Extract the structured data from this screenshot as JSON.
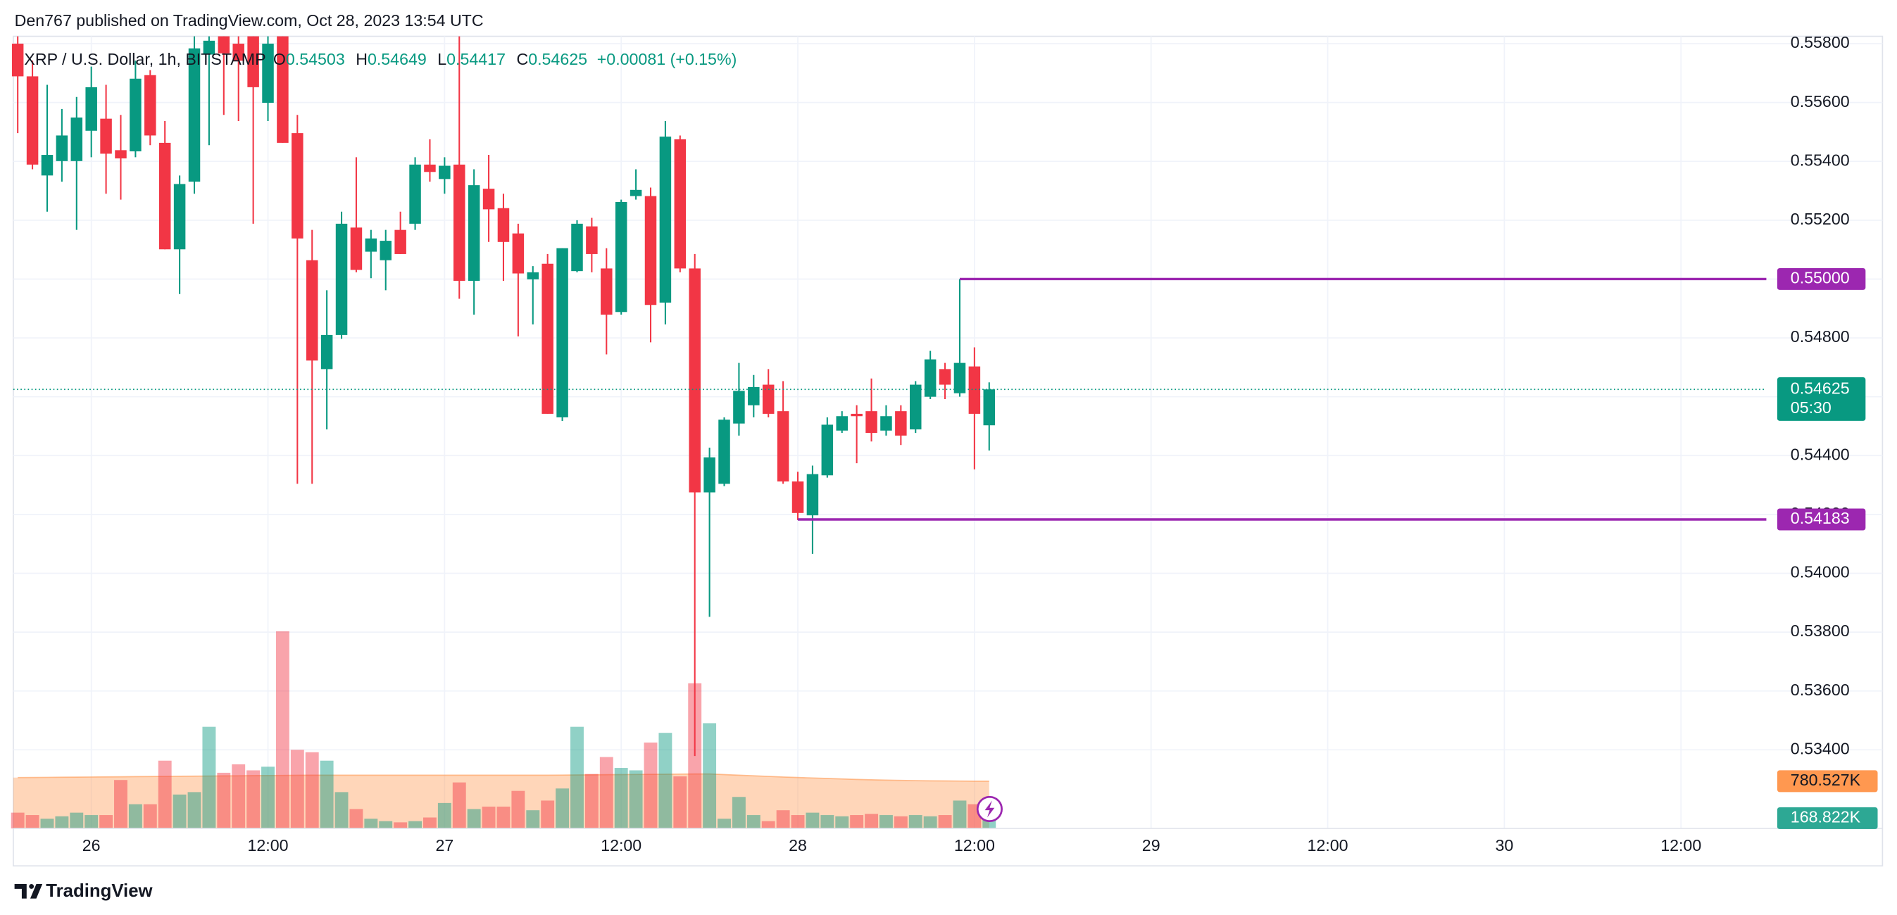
{
  "header": "Den767 published on TradingView.com, Oct 28, 2023 13:54 UTC",
  "footer": "TradingView",
  "chart_data": {
    "type": "candlestick",
    "title": "XRP / U.S. Dollar, 1h, BITSTAMP",
    "ohlc_labels": [
      "O",
      "H",
      "L",
      "C"
    ],
    "change": "+0.00081 (+0.15%)",
    "open": [
      0.558,
      0.55689,
      0.55352,
      0.55401,
      0.55401,
      0.55504,
      0.55545,
      0.55438,
      0.55434,
      0.55693,
      0.55463,
      0.55101,
      0.55331,
      0.55763,
      0.55825,
      0.558,
      0.55825,
      0.55599,
      0.55825,
      0.55496,
      0.55064,
      0.54694,
      0.5481,
      0.55175,
      0.55093,
      0.55064,
      0.55167,
      0.55188,
      0.55389,
      0.5534,
      0.55389,
      0.54994,
      0.55307,
      0.55241,
      0.55155,
      0.54999,
      0.55052,
      0.5453,
      0.55027,
      0.55179,
      0.55036,
      0.54888,
      0.55282,
      0.55282,
      0.5492,
      0.55475,
      0.55036,
      0.54275,
      0.54304,
      0.54509,
      0.54571,
      0.54641,
      0.54551,
      0.54312,
      0.54197,
      0.54333,
      0.54485,
      0.54542,
      0.54551,
      0.54485,
      0.54551,
      0.54489,
      0.546,
      0.54694,
      0.54612,
      0.54703,
      0.54503
    ],
    "high": [
      0.55825,
      0.55742,
      0.5566,
      0.55578,
      0.55619,
      0.55722,
      0.5566,
      0.55558,
      0.55742,
      0.5571,
      0.55537,
      0.55352,
      0.55825,
      0.55825,
      0.55825,
      0.55825,
      0.55825,
      0.55825,
      0.55825,
      0.55558,
      0.55167,
      0.54962,
      0.55229,
      0.55414,
      0.55167,
      0.55167,
      0.55229,
      0.55414,
      0.55475,
      0.55414,
      0.55825,
      0.55373,
      0.55422,
      0.5529,
      0.55188,
      0.55044,
      0.55085,
      0.55105,
      0.552,
      0.55208,
      0.55105,
      0.5527,
      0.55373,
      0.55311,
      0.55537,
      0.55488,
      0.55085,
      0.54427,
      0.5453,
      0.54715,
      0.54674,
      0.54694,
      0.54653,
      0.54345,
      0.54366,
      0.5453,
      0.54551,
      0.54571,
      0.54662,
      0.54571,
      0.54571,
      0.54653,
      0.54756,
      0.54715,
      0.55,
      0.54768,
      0.54649
    ],
    "low": [
      0.55496,
      0.55373,
      0.55229,
      0.55331,
      0.55167,
      0.55414,
      0.5529,
      0.5527,
      0.55414,
      0.55455,
      0.55101,
      0.54949,
      0.5529,
      0.55455,
      0.55558,
      0.55537,
      0.55188,
      0.55537,
      0.55463,
      0.54304,
      0.54304,
      0.54489,
      0.54797,
      0.55023,
      0.55003,
      0.54962,
      0.55085,
      0.55167,
      0.55331,
      0.5529,
      0.54933,
      0.54879,
      0.55126,
      0.54994,
      0.54805,
      0.54846,
      0.54542,
      0.54518,
      0.55023,
      0.55023,
      0.54744,
      0.54879,
      0.5527,
      0.54785,
      0.54846,
      0.55023,
      0.53379,
      0.53852,
      0.54296,
      0.54468,
      0.5453,
      0.5453,
      0.54304,
      0.54181,
      0.54066,
      0.54325,
      0.54477,
      0.54374,
      0.54448,
      0.54468,
      0.54436,
      0.54477,
      0.54592,
      0.54592,
      0.546,
      0.54353,
      0.54417
    ],
    "close": [
      0.55689,
      0.55389,
      0.55422,
      0.55488,
      0.55549,
      0.55652,
      0.55426,
      0.5541,
      0.55681,
      0.55488,
      0.55101,
      0.55323,
      0.55784,
      0.5581,
      0.55767,
      0.55742,
      0.55652,
      0.558,
      0.55463,
      0.55138,
      0.54723,
      0.5481,
      0.55188,
      0.55031,
      0.55138,
      0.5513,
      0.55085,
      0.55389,
      0.55364,
      0.55385,
      0.54994,
      0.55319,
      0.55237,
      0.55126,
      0.55019,
      0.55023,
      0.54542,
      0.55105,
      0.55188,
      0.55085,
      0.54879,
      0.55262,
      0.55303,
      0.54912,
      0.55484,
      0.55036,
      0.54275,
      0.54394,
      0.54522,
      0.5462,
      0.54633,
      0.54542,
      0.54312,
      0.54205,
      0.54337,
      0.54505,
      0.54534,
      0.54534,
      0.54477,
      0.54534,
      0.54468,
      0.54641,
      0.54727,
      0.54641,
      0.54715,
      0.54542,
      0.54625
    ],
    "up_color": "#089981",
    "down_color": "#f23645",
    "volume": [
      260000,
      220000,
      160000,
      200000,
      260000,
      220000,
      220000,
      800000,
      400000,
      400000,
      1120000,
      560000,
      600000,
      1680000,
      920000,
      1060000,
      960000,
      1020000,
      3260000,
      1300000,
      1260000,
      1120000,
      600000,
      320000,
      160000,
      120000,
      100000,
      120000,
      180000,
      420000,
      760000,
      320000,
      360000,
      360000,
      620000,
      300000,
      460000,
      660000,
      1680000,
      900000,
      1180000,
      1000000,
      960000,
      1420000,
      1580000,
      860000,
      2400000,
      1740000,
      160000,
      520000,
      220000,
      120000,
      300000,
      220000,
      260000,
      220000,
      200000,
      220000,
      240000,
      220000,
      200000,
      220000,
      200000,
      220000,
      460000,
      400000,
      168822
    ],
    "volume_label": "168.822K",
    "volume_ma": [
      840000,
      842000,
      844000,
      846000,
      848000,
      850000,
      852000,
      854000,
      856000,
      858000,
      860000,
      862000,
      864000,
      866000,
      868000,
      870000,
      872000,
      874000,
      876000,
      878000,
      880000,
      880000,
      880000,
      880000,
      880000,
      880000,
      880000,
      880000,
      880000,
      880000,
      880000,
      880000,
      880000,
      880000,
      880000,
      880000,
      880000,
      882000,
      884000,
      886000,
      888000,
      890000,
      892000,
      894000,
      896000,
      898000,
      900000,
      900000,
      890000,
      880000,
      870000,
      860000,
      850000,
      842000,
      834000,
      826000,
      818000,
      810000,
      804000,
      798000,
      794000,
      790000,
      787000,
      785000,
      783000,
      781000,
      780527
    ],
    "volume_ma_label": "780.527K",
    "volume_ma_color": "#ff9850",
    "xlim": [
      -0.3,
      118.8
    ],
    "xticks": [
      {
        "value": 5,
        "label": "26"
      },
      {
        "value": 17,
        "label": "12:00"
      },
      {
        "value": 29,
        "label": "27"
      },
      {
        "value": 41,
        "label": "12:00"
      },
      {
        "value": 53,
        "label": "28"
      },
      {
        "value": 65,
        "label": "12:00"
      },
      {
        "value": 77,
        "label": "29"
      },
      {
        "value": 89,
        "label": "12:00"
      },
      {
        "value": 101,
        "label": "30"
      },
      {
        "value": 113,
        "label": "12:00"
      }
    ],
    "ylim": [
      0.53133,
      0.55825
    ],
    "yticks": [
      {
        "value": 0.534,
        "label": "0.53400"
      },
      {
        "value": 0.536,
        "label": "0.53600"
      },
      {
        "value": 0.538,
        "label": "0.53800"
      },
      {
        "value": 0.54,
        "label": "0.54000"
      },
      {
        "value": 0.542,
        "label": "0.54200"
      },
      {
        "value": 0.544,
        "label": "0.54400"
      },
      {
        "value": 0.546,
        "label": "0.54600"
      },
      {
        "value": 0.548,
        "label": "0.54800"
      },
      {
        "value": 0.55,
        "label": "0.55000"
      },
      {
        "value": 0.552,
        "label": "0.55200"
      },
      {
        "value": 0.554,
        "label": "0.55400"
      },
      {
        "value": 0.556,
        "label": "0.55600"
      },
      {
        "value": 0.558,
        "label": "0.55800"
      }
    ],
    "y2lim": [
      0,
      13100000
    ],
    "grid": true,
    "last_price": {
      "value": 0.54625,
      "countdown": "05:30"
    },
    "levels": [
      {
        "value": 0.55,
        "label": "0.55000",
        "start": 64,
        "color": "#9c27b0"
      },
      {
        "value": 0.54183,
        "start": 53,
        "color": "#9c27b0"
      }
    ]
  }
}
